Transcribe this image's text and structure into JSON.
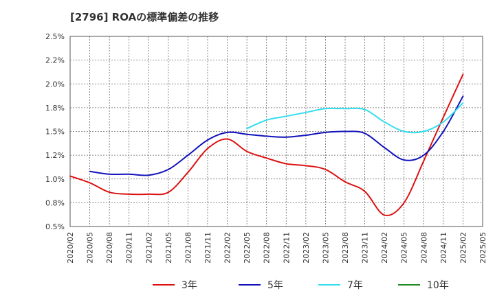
{
  "chart_data": {
    "type": "line",
    "title": "[2796]  ROAの標準偏差の推移",
    "xlabel": "",
    "ylabel": "",
    "ylim": [
      0.5,
      2.5
    ],
    "grid": true,
    "legend_position": "bottom",
    "y_ticks": [
      "0.5%",
      "0.8%",
      "1.0%",
      "1.2%",
      "1.5%",
      "1.8%",
      "2.0%",
      "2.2%",
      "2.5%"
    ],
    "x": [
      "2020/02",
      "2020/05",
      "2020/08",
      "2020/11",
      "2021/02",
      "2021/05",
      "2021/08",
      "2021/11",
      "2022/02",
      "2022/05",
      "2022/08",
      "2022/11",
      "2023/02",
      "2023/05",
      "2023/08",
      "2023/11",
      "2024/02",
      "2024/05",
      "2024/08",
      "2024/11",
      "2025/02",
      "2025/05"
    ],
    "series": [
      {
        "name": "3年",
        "color": "#dd1111",
        "values": [
          1.03,
          0.96,
          0.86,
          0.84,
          0.84,
          0.86,
          1.07,
          1.32,
          1.42,
          1.29,
          1.22,
          1.16,
          1.14,
          1.1,
          0.97,
          0.87,
          0.62,
          0.75,
          1.19,
          1.65,
          2.1,
          null
        ]
      },
      {
        "name": "5年",
        "color": "#1111bb",
        "values": [
          null,
          1.08,
          1.05,
          1.05,
          1.04,
          1.1,
          1.25,
          1.41,
          1.49,
          1.47,
          1.45,
          1.44,
          1.46,
          1.49,
          1.5,
          1.48,
          1.33,
          1.2,
          1.25,
          1.5,
          1.87,
          null
        ]
      },
      {
        "name": "7年",
        "color": "#33ddee",
        "values": [
          null,
          null,
          null,
          null,
          null,
          null,
          null,
          null,
          null,
          1.53,
          1.62,
          1.66,
          1.7,
          1.74,
          1.74,
          1.73,
          1.6,
          1.5,
          1.5,
          1.6,
          1.8,
          null
        ]
      },
      {
        "name": "10年",
        "color": "#228822",
        "values": [
          null,
          null,
          null,
          null,
          null,
          null,
          null,
          null,
          null,
          null,
          null,
          null,
          null,
          null,
          null,
          null,
          null,
          null,
          null,
          null,
          null,
          null
        ]
      }
    ]
  }
}
